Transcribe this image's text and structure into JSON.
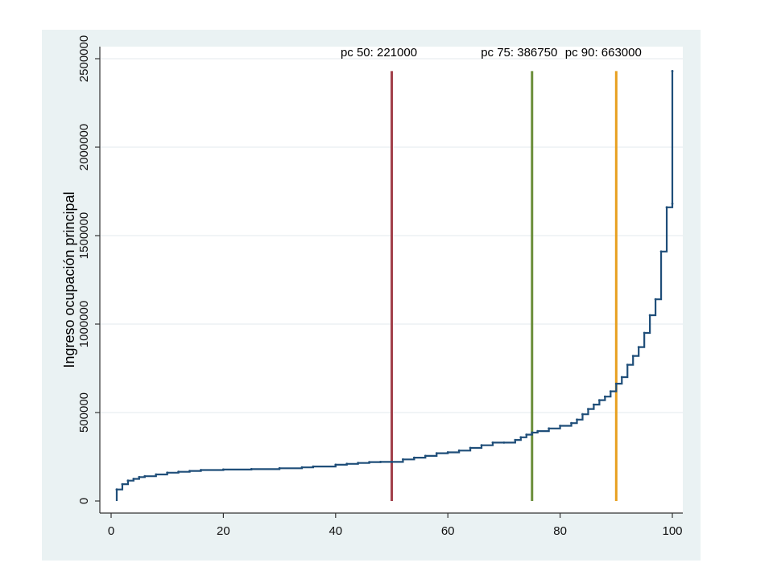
{
  "chart_data": {
    "type": "line",
    "title": "",
    "xlabel": "",
    "ylabel": "Ingreso ocupación principal",
    "xlim": [
      0,
      100
    ],
    "ylim": [
      0,
      2500000
    ],
    "x_ticks": [
      "0",
      "20",
      "40",
      "60",
      "80",
      "100"
    ],
    "x_tick_values": [
      0,
      20,
      40,
      60,
      80,
      100
    ],
    "y_ticks": [
      "0",
      "500000",
      "1000000",
      "1500000",
      "2000000",
      "2500000"
    ],
    "y_tick_values": [
      0,
      500000,
      1000000,
      1500000,
      2000000,
      2500000
    ],
    "grid": true,
    "legend": "none",
    "series": [
      {
        "color": "#1f4e79",
        "style": "step",
        "x": [
          1,
          2,
          3,
          4,
          5,
          6,
          8,
          10,
          12,
          14,
          16,
          20,
          25,
          30,
          34,
          36,
          40,
          42,
          44,
          46,
          48,
          50,
          52,
          54,
          56,
          58,
          60,
          62,
          64,
          66,
          68,
          70,
          72,
          73,
          74,
          75,
          76,
          78,
          80,
          82,
          83,
          84,
          85,
          86,
          87,
          88,
          89,
          90,
          91,
          92,
          93,
          94,
          95,
          96,
          97,
          98,
          99,
          100,
          100
        ],
        "y": [
          65000,
          95000,
          115000,
          125000,
          135000,
          140000,
          150000,
          160000,
          165000,
          170000,
          175000,
          178000,
          180000,
          185000,
          190000,
          195000,
          205000,
          210000,
          215000,
          220000,
          221000,
          221000,
          235000,
          245000,
          255000,
          270000,
          275000,
          285000,
          300000,
          315000,
          330000,
          330000,
          345000,
          360000,
          375000,
          386750,
          395000,
          410000,
          425000,
          440000,
          460000,
          490000,
          520000,
          545000,
          570000,
          590000,
          620000,
          663000,
          700000,
          770000,
          820000,
          870000,
          950000,
          1050000,
          1140000,
          1410000,
          1660000,
          1680000,
          2430000
        ]
      }
    ],
    "percentile_lines": [
      {
        "label": "pc 50: 221000",
        "x": 50,
        "color": "#a2404a"
      },
      {
        "label": "pc 75: 386750",
        "x": 75,
        "color": "#6b8e3a"
      },
      {
        "label": "pc 90: 663000",
        "x": 90,
        "color": "#e8a020"
      }
    ],
    "percentile_line_top": 2430000
  },
  "colors": {
    "panel_background": "#eaf2f3",
    "plot_background": "#ffffff",
    "grid": "#e3eaec",
    "axis": "#333333"
  }
}
